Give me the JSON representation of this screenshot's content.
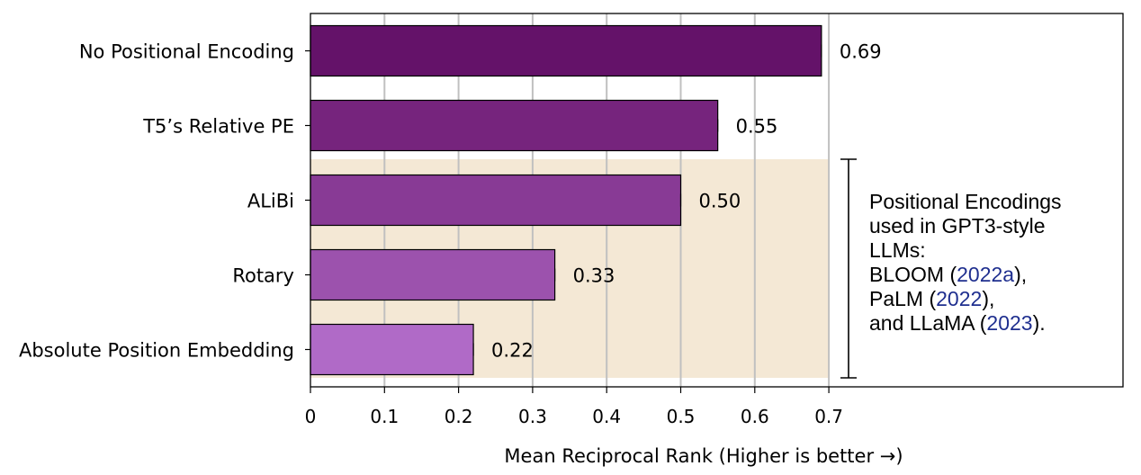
{
  "chart_data": {
    "type": "bar",
    "orientation": "horizontal",
    "categories": [
      "No Positional Encoding",
      "T5’s Relative PE",
      "ALiBi",
      "Rotary",
      "Absolute Position Embedding"
    ],
    "values": [
      0.69,
      0.55,
      0.5,
      0.33,
      0.22
    ],
    "value_labels": [
      "0.69",
      "0.55",
      "0.50",
      "0.33",
      "0.22"
    ],
    "bar_colors": [
      "#641269",
      "#76247d",
      "#883a95",
      "#9c52ad",
      "#b06ac7"
    ],
    "title": "",
    "xlabel": "Mean Reciprocal Rank (Higher is better →)",
    "ylabel": "",
    "xlim": [
      0,
      1.1
    ],
    "xticks": [
      0,
      0.1,
      0.2,
      0.3,
      0.4,
      0.5,
      0.6,
      0.7
    ],
    "xtick_labels": [
      "0",
      "0.1",
      "0.2",
      "0.3",
      "0.4",
      "0.5",
      "0.6",
      "0.7"
    ],
    "grid": "vertical",
    "highlight": {
      "categories": [
        "ALiBi",
        "Rotary",
        "Absolute Position Embedding"
      ],
      "color": "#f4e8d5",
      "x_range": [
        0,
        0.7
      ]
    },
    "annotation": {
      "lines": [
        [
          {
            "text": "Positional Encodings"
          }
        ],
        [
          {
            "text": "used in GPT3-style"
          }
        ],
        [
          {
            "text": "LLMs:"
          }
        ],
        [
          {
            "text": "BLOOM ("
          },
          {
            "text": "2022a",
            "cite": true
          },
          {
            "text": "),"
          }
        ],
        [
          {
            "text": "PaLM ("
          },
          {
            "text": "2022",
            "cite": true
          },
          {
            "text": "),"
          }
        ],
        [
          {
            "text": "and LLaMA ("
          },
          {
            "text": "2023",
            "cite": true
          },
          {
            "text": ")."
          }
        ]
      ],
      "cite_color": "#1f2f8f"
    }
  }
}
